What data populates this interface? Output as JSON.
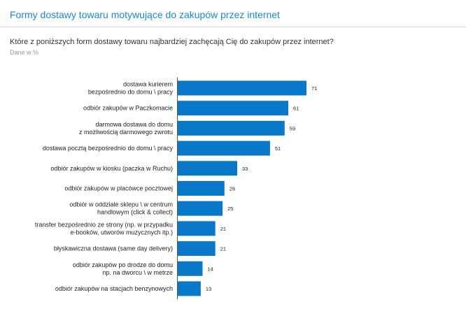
{
  "header": {
    "title": "Formy dostawy towaru motywujące do zakupów przez internet",
    "question": "Które z poniższych form dostawy towaru najbardziej zachęcają Cię do zakupów przez internet?",
    "note": "Dane w %"
  },
  "colors": {
    "accent": "#1a88c9",
    "bar": "#0a78c9"
  },
  "chart_data": {
    "type": "bar",
    "orientation": "horizontal",
    "categories": [
      [
        "dostawa kurierem",
        "bezpośrednio do domu \\ pracy"
      ],
      [
        "odbiór zakupów w Paczkomacie"
      ],
      [
        "darmowa dostawa do domu",
        "z możliwością darmowego zwrotu"
      ],
      [
        "dostawa pocztą bezpośrednio do domu \\ pracy"
      ],
      [
        "odbiór zakupów w kiosku (paczka w Ruchu)"
      ],
      [
        "odbiór zakupów w placówce pocztowej"
      ],
      [
        "odbiór w oddziale sklepu \\ w centrum",
        "handlowym (click & collect)"
      ],
      [
        "transfer bezpośrednio ze strony (np. w przypadku",
        "e-booków, utworów muzycznych itp.)"
      ],
      [
        "błyskawiczna dostawa (same day delivery)"
      ],
      [
        "odbiór zakupów po drodze do domu",
        "np. na dworcu \\ w metrze"
      ],
      [
        "odbiór zakupów na stacjach benzynowych"
      ]
    ],
    "values": [
      71,
      61,
      59,
      51,
      33,
      26,
      25,
      21,
      21,
      14,
      13
    ],
    "value_labels": [
      "71",
      "61",
      "59",
      "51",
      "33",
      "26",
      "25",
      "21",
      "21",
      "14",
      "13"
    ],
    "xlim": [
      0,
      100
    ],
    "grid": false,
    "legend": "none",
    "title": "",
    "xlabel": "",
    "ylabel": ""
  }
}
